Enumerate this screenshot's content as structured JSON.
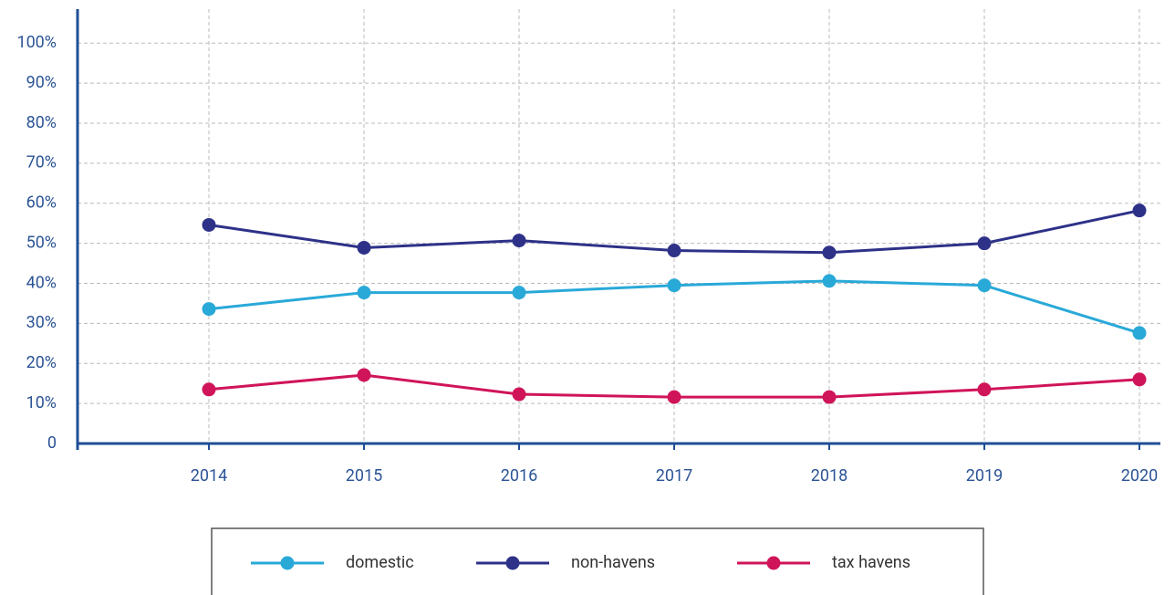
{
  "chart_data": {
    "type": "line",
    "categories": [
      "2014",
      "2015",
      "2016",
      "2017",
      "2018",
      "2019",
      "2020"
    ],
    "series": [
      {
        "name": "domestic",
        "color": "#29a9d8",
        "values": [
          33.6,
          37.7,
          37.7,
          39.5,
          40.6,
          39.5,
          27.6
        ]
      },
      {
        "name": "non-havens",
        "color": "#2e3188",
        "values": [
          54.6,
          48.9,
          50.7,
          48.2,
          47.7,
          50.0,
          58.2
        ]
      },
      {
        "name": "tax havens",
        "color": "#d0145a",
        "values": [
          13.5,
          17.1,
          12.3,
          11.6,
          11.6,
          13.5,
          16.0
        ]
      }
    ],
    "ylim": [
      0,
      108.5
    ],
    "yticks": [
      0,
      {
        "value": 10,
        "label": "10%"
      },
      {
        "value": 20,
        "label": "20%"
      },
      {
        "value": 30,
        "label": "30%"
      },
      {
        "value": 40,
        "label": "40%"
      },
      {
        "value": 50,
        "label": "50%"
      },
      {
        "value": 60,
        "label": "60%"
      },
      {
        "value": 70,
        "label": "70%"
      },
      {
        "value": 80,
        "label": "80%"
      },
      {
        "value": 90,
        "label": "90%"
      },
      {
        "value": 100,
        "label": "100%"
      }
    ],
    "grid": true,
    "legend": "bottom"
  }
}
